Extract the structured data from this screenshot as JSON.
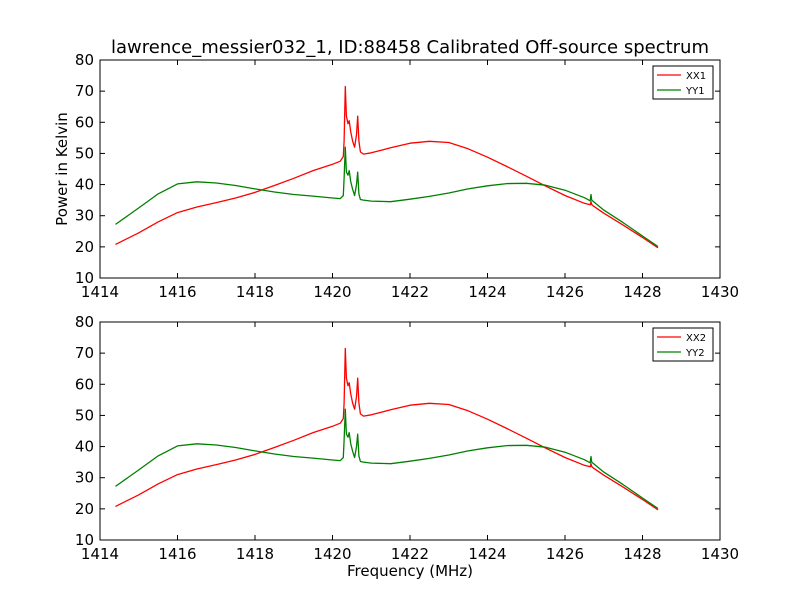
{
  "figure": {
    "title": "lawrence_messier032_1, ID:88458 Calibrated Off-source spectrum"
  },
  "chart_data": [
    {
      "type": "line",
      "title": "lawrence_messier032_1, ID:88458 Calibrated Off-source spectrum",
      "xlabel": "",
      "ylabel": "Power in Kelvin",
      "xlim": [
        1414,
        1430
      ],
      "ylim": [
        10,
        80
      ],
      "xticks": [
        "1414",
        "1416",
        "1418",
        "1420",
        "1422",
        "1424",
        "1426",
        "1428",
        "1430"
      ],
      "yticks": [
        "10",
        "20",
        "30",
        "40",
        "50",
        "60",
        "70",
        "80"
      ],
      "grid": false,
      "legend": "top-right",
      "series": [
        {
          "name": "XX1",
          "color": "#ff0000",
          "x": [
            1414.4,
            1415.0,
            1415.5,
            1416.0,
            1416.5,
            1417.0,
            1417.5,
            1418.0,
            1418.5,
            1419.0,
            1419.5,
            1420.0,
            1420.2,
            1420.28,
            1420.3,
            1420.33,
            1420.36,
            1420.4,
            1420.43,
            1420.47,
            1420.52,
            1420.57,
            1420.62,
            1420.65,
            1420.68,
            1420.72,
            1420.8,
            1421.0,
            1421.5,
            1422.0,
            1422.5,
            1423.0,
            1423.5,
            1424.0,
            1424.5,
            1425.0,
            1425.5,
            1426.0,
            1426.5,
            1426.65,
            1426.67,
            1426.69,
            1426.72,
            1427.0,
            1427.5,
            1428.0,
            1428.4
          ],
          "y": [
            20.8,
            24.5,
            28.0,
            31.0,
            32.8,
            34.2,
            35.7,
            37.5,
            39.7,
            42.0,
            44.5,
            46.5,
            47.5,
            49.0,
            54.0,
            71.5,
            62.0,
            59.5,
            60.5,
            57.0,
            54.0,
            52.0,
            56.0,
            62.0,
            54.0,
            50.5,
            49.8,
            50.2,
            51.8,
            53.3,
            53.9,
            53.5,
            51.5,
            48.8,
            45.8,
            42.7,
            39.5,
            36.5,
            34.0,
            33.5,
            34.5,
            33.6,
            33.2,
            30.8,
            27.0,
            23.0,
            19.7
          ]
        },
        {
          "name": "YY1",
          "color": "#008000",
          "x": [
            1414.4,
            1415.0,
            1415.5,
            1416.0,
            1416.5,
            1417.0,
            1417.5,
            1418.0,
            1418.5,
            1419.0,
            1419.5,
            1420.0,
            1420.2,
            1420.28,
            1420.3,
            1420.33,
            1420.36,
            1420.4,
            1420.43,
            1420.47,
            1420.52,
            1420.57,
            1420.62,
            1420.65,
            1420.68,
            1420.72,
            1420.8,
            1421.0,
            1421.5,
            1422.0,
            1422.5,
            1423.0,
            1423.5,
            1424.0,
            1424.5,
            1425.0,
            1425.5,
            1426.0,
            1426.5,
            1426.65,
            1426.67,
            1426.69,
            1426.72,
            1427.0,
            1427.5,
            1428.0,
            1428.4
          ],
          "y": [
            27.2,
            32.5,
            37.0,
            40.2,
            40.9,
            40.5,
            39.7,
            38.6,
            37.6,
            36.8,
            36.3,
            35.7,
            35.5,
            36.5,
            42.0,
            52.0,
            44.0,
            43.0,
            44.5,
            41.0,
            38.5,
            36.5,
            40.0,
            44.0,
            37.0,
            35.2,
            35.0,
            34.7,
            34.5,
            35.3,
            36.2,
            37.3,
            38.6,
            39.6,
            40.3,
            40.4,
            39.8,
            38.2,
            35.8,
            34.8,
            36.8,
            35.0,
            34.7,
            31.8,
            27.8,
            23.5,
            20.1
          ]
        }
      ]
    },
    {
      "type": "line",
      "title": "",
      "xlabel": "Frequency (MHz)",
      "ylabel": "",
      "xlim": [
        1414,
        1430
      ],
      "ylim": [
        10,
        80
      ],
      "xticks": [
        "1414",
        "1416",
        "1418",
        "1420",
        "1422",
        "1424",
        "1426",
        "1428",
        "1430"
      ],
      "yticks": [
        "10",
        "20",
        "30",
        "40",
        "50",
        "60",
        "70",
        "80"
      ],
      "grid": false,
      "legend": "top-right",
      "series": [
        {
          "name": "XX2",
          "color": "#ff0000",
          "x": [
            1414.4,
            1415.0,
            1415.5,
            1416.0,
            1416.5,
            1417.0,
            1417.5,
            1418.0,
            1418.5,
            1419.0,
            1419.5,
            1420.0,
            1420.2,
            1420.28,
            1420.3,
            1420.33,
            1420.36,
            1420.4,
            1420.43,
            1420.47,
            1420.52,
            1420.57,
            1420.62,
            1420.65,
            1420.68,
            1420.72,
            1420.8,
            1421.0,
            1421.5,
            1422.0,
            1422.5,
            1423.0,
            1423.5,
            1424.0,
            1424.5,
            1425.0,
            1425.5,
            1426.0,
            1426.5,
            1426.65,
            1426.67,
            1426.69,
            1426.72,
            1427.0,
            1427.5,
            1428.0,
            1428.4
          ],
          "y": [
            20.8,
            24.5,
            28.0,
            31.0,
            32.8,
            34.2,
            35.7,
            37.5,
            39.7,
            42.0,
            44.5,
            46.5,
            47.5,
            49.0,
            54.0,
            71.5,
            62.0,
            59.5,
            60.5,
            57.0,
            54.0,
            52.0,
            56.0,
            62.0,
            54.0,
            50.5,
            49.8,
            50.2,
            51.8,
            53.3,
            53.9,
            53.5,
            51.5,
            48.8,
            45.8,
            42.7,
            39.5,
            36.5,
            34.0,
            33.5,
            34.5,
            33.6,
            33.2,
            30.8,
            27.0,
            23.0,
            19.7
          ]
        },
        {
          "name": "YY2",
          "color": "#008000",
          "x": [
            1414.4,
            1415.0,
            1415.5,
            1416.0,
            1416.5,
            1417.0,
            1417.5,
            1418.0,
            1418.5,
            1419.0,
            1419.5,
            1420.0,
            1420.2,
            1420.28,
            1420.3,
            1420.33,
            1420.36,
            1420.4,
            1420.43,
            1420.47,
            1420.52,
            1420.57,
            1420.62,
            1420.65,
            1420.68,
            1420.72,
            1420.8,
            1421.0,
            1421.5,
            1422.0,
            1422.5,
            1423.0,
            1423.5,
            1424.0,
            1424.5,
            1425.0,
            1425.5,
            1426.0,
            1426.5,
            1426.65,
            1426.67,
            1426.69,
            1426.72,
            1427.0,
            1427.5,
            1428.0,
            1428.4
          ],
          "y": [
            27.2,
            32.5,
            37.0,
            40.2,
            40.9,
            40.5,
            39.7,
            38.6,
            37.6,
            36.8,
            36.3,
            35.7,
            35.5,
            36.5,
            42.0,
            52.0,
            44.0,
            43.0,
            44.5,
            41.0,
            38.5,
            36.5,
            40.0,
            44.0,
            37.0,
            35.2,
            35.0,
            34.7,
            34.5,
            35.3,
            36.2,
            37.3,
            38.6,
            39.6,
            40.3,
            40.4,
            39.8,
            38.2,
            35.8,
            34.8,
            36.8,
            35.0,
            34.7,
            31.8,
            27.8,
            23.5,
            20.1
          ]
        }
      ]
    }
  ]
}
